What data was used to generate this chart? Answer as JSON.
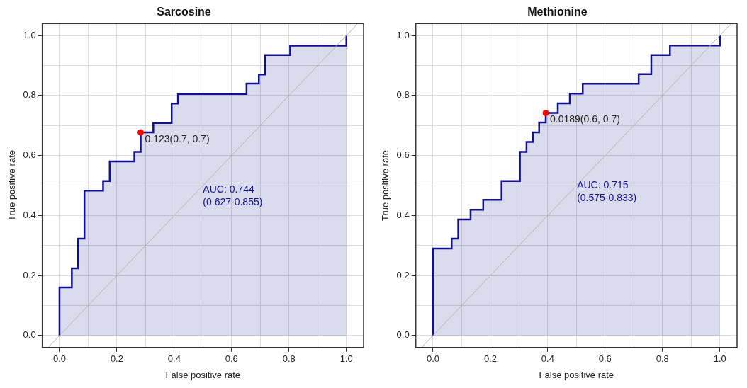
{
  "chart_data": [
    {
      "type": "step",
      "title": "Sarcosine",
      "xlabel": "False positive rate",
      "ylabel": "True positive rate",
      "xlim": [
        -0.06,
        1.06
      ],
      "ylim": [
        -0.04,
        1.04
      ],
      "xticks": [
        {
          "value": 0,
          "label": "0.0"
        },
        {
          "value": 0.1,
          "label": null
        },
        {
          "value": 0.2,
          "label": "0.2"
        },
        {
          "value": 0.3,
          "label": null
        },
        {
          "value": 0.4,
          "label": "0.4"
        },
        {
          "value": 0.5,
          "label": null
        },
        {
          "value": 0.6,
          "label": "0.6"
        },
        {
          "value": 0.7,
          "label": null
        },
        {
          "value": 0.8,
          "label": "0.8"
        },
        {
          "value": 0.9,
          "label": null
        },
        {
          "value": 1,
          "label": "1.0"
        }
      ],
      "yticks": [
        {
          "value": 0,
          "label": "0.0"
        },
        {
          "value": 0.1,
          "label": null
        },
        {
          "value": 0.2,
          "label": "0.2"
        },
        {
          "value": 0.3,
          "label": null
        },
        {
          "value": 0.4,
          "label": "0.4"
        },
        {
          "value": 0.5,
          "label": null
        },
        {
          "value": 0.6,
          "label": "0.6"
        },
        {
          "value": 0.7,
          "label": null
        },
        {
          "value": 0.8,
          "label": "0.8"
        },
        {
          "value": 0.9,
          "label": null
        },
        {
          "value": 1,
          "label": "1.0"
        }
      ],
      "grid": true,
      "series": [
        {
          "color": "#101090",
          "x": [
            0,
            0,
            0.043,
            0.065,
            0.087,
            0.152,
            0.175,
            0.261,
            0.283,
            0.327,
            0.391,
            0.413,
            0.652,
            0.695,
            0.717,
            0.804,
            1
          ],
          "values": [
            0,
            0.16,
            0.224,
            0.323,
            0.483,
            0.515,
            0.58,
            0.612,
            0.677,
            0.708,
            0.773,
            0.805,
            0.84,
            0.87,
            0.935,
            0.966,
            1
          ]
        },
        {
          "type": "line",
          "color": "#b4b4b4",
          "x": [
            -0.04,
            1.04
          ],
          "values": [
            -0.04,
            1.04
          ]
        },
        {
          "type": "scatter",
          "color": "#ff0000",
          "x": [
            0.283
          ],
          "values": [
            0.677
          ]
        }
      ],
      "annotations": [
        {
          "text": "0.123(0.7, 0.7)",
          "x": 0.283,
          "y": 0.677
        },
        {
          "text": "AUC: 0.744\n(0.627-0.855)",
          "x": 0.5,
          "y": 0.484
        }
      ]
    },
    {
      "type": "step",
      "title": "Methionine",
      "xlabel": "False positive rate",
      "ylabel": "True positive rate",
      "xlim": [
        -0.06,
        1.06
      ],
      "ylim": [
        -0.04,
        1.04
      ],
      "xticks": [
        {
          "value": 0,
          "label": "0.0"
        },
        {
          "value": 0.1,
          "label": null
        },
        {
          "value": 0.2,
          "label": "0.2"
        },
        {
          "value": 0.3,
          "label": null
        },
        {
          "value": 0.4,
          "label": "0.4"
        },
        {
          "value": 0.5,
          "label": null
        },
        {
          "value": 0.6,
          "label": "0.6"
        },
        {
          "value": 0.7,
          "label": null
        },
        {
          "value": 0.8,
          "label": "0.8"
        },
        {
          "value": 0.9,
          "label": null
        },
        {
          "value": 1,
          "label": "1.0"
        }
      ],
      "yticks": [
        {
          "value": 0,
          "label": "0.0"
        },
        {
          "value": 0.1,
          "label": null
        },
        {
          "value": 0.2,
          "label": "0.2"
        },
        {
          "value": 0.3,
          "label": null
        },
        {
          "value": 0.4,
          "label": "0.4"
        },
        {
          "value": 0.5,
          "label": null
        },
        {
          "value": 0.6,
          "label": "0.6"
        },
        {
          "value": 0.7,
          "label": null
        },
        {
          "value": 0.8,
          "label": "0.8"
        },
        {
          "value": 0.9,
          "label": null
        },
        {
          "value": 1,
          "label": "1.0"
        }
      ],
      "grid": true,
      "series": [
        {
          "color": "#101090",
          "x": [
            0,
            0,
            0.065,
            0.088,
            0.131,
            0.175,
            0.239,
            0.303,
            0.326,
            0.348,
            0.37,
            0.393,
            0.435,
            0.477,
            0.522,
            0.717,
            0.761,
            0.826,
            1
          ],
          "values": [
            0,
            0.29,
            0.323,
            0.387,
            0.419,
            0.452,
            0.515,
            0.612,
            0.645,
            0.677,
            0.71,
            0.742,
            0.774,
            0.806,
            0.839,
            0.871,
            0.935,
            0.967,
            1
          ]
        },
        {
          "type": "line",
          "color": "#b4b4b4",
          "x": [
            -0.04,
            1.04
          ],
          "values": [
            -0.04,
            1.04
          ]
        },
        {
          "type": "scatter",
          "color": "#ff0000",
          "x": [
            0.393
          ],
          "values": [
            0.742
          ]
        }
      ],
      "annotations": [
        {
          "text": "0.0189(0.6, 0.7)",
          "x": 0.393,
          "y": 0.742
        },
        {
          "text": "AUC: 0.715\n(0.575-0.833)",
          "x": 0.502,
          "y": 0.497
        }
      ]
    }
  ]
}
